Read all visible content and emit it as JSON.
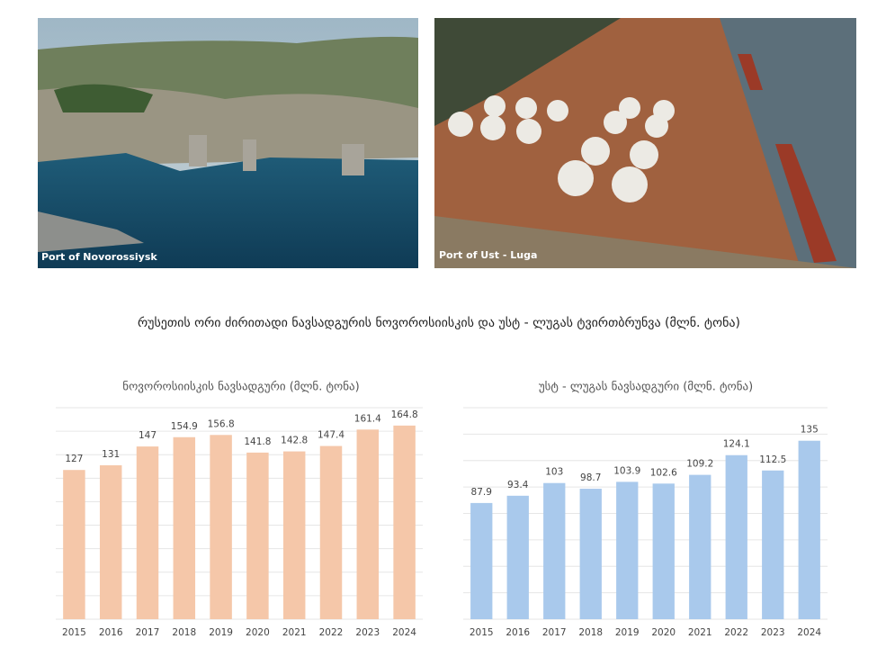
{
  "images": [
    {
      "caption": "Port of Novorossiysk"
    },
    {
      "caption": "Port of Ust - Luga"
    }
  ],
  "title": "რუსეთის ორი ძირითადი ნავსადგურის ნოვოროსიისკის და უსტ - ლუგას ტვირთბრუნვა (მლნ. ტონა)",
  "chart_data": [
    {
      "type": "bar",
      "title": "ნოვოროსიისკის ნავსადგური (მლნ. ტონა)",
      "categories": [
        "2015",
        "2016",
        "2017",
        "2018",
        "2019",
        "2020",
        "2021",
        "2022",
        "2023",
        "2024"
      ],
      "values": [
        127,
        131,
        147,
        154.9,
        156.8,
        141.8,
        142.8,
        147.4,
        161.4,
        164.8
      ],
      "color": "#f5c7a9",
      "ylim": [
        0,
        180
      ],
      "yticks": [
        0,
        20,
        40,
        60,
        80,
        100,
        120,
        140,
        160,
        180
      ],
      "grid": true
    },
    {
      "type": "bar",
      "title": "უსტ - ლუგას ნავსადგური (მლნ. ტონა)",
      "categories": [
        "2015",
        "2016",
        "2017",
        "2018",
        "2019",
        "2020",
        "2021",
        "2022",
        "2023",
        "2024"
      ],
      "values": [
        87.9,
        93.4,
        103,
        98.7,
        103.9,
        102.6,
        109.2,
        124.1,
        112.5,
        135
      ],
      "color": "#a9c9ec",
      "ylim": [
        0,
        160
      ],
      "yticks": [
        0,
        20,
        40,
        60,
        80,
        100,
        120,
        140,
        160
      ],
      "grid": true
    }
  ]
}
